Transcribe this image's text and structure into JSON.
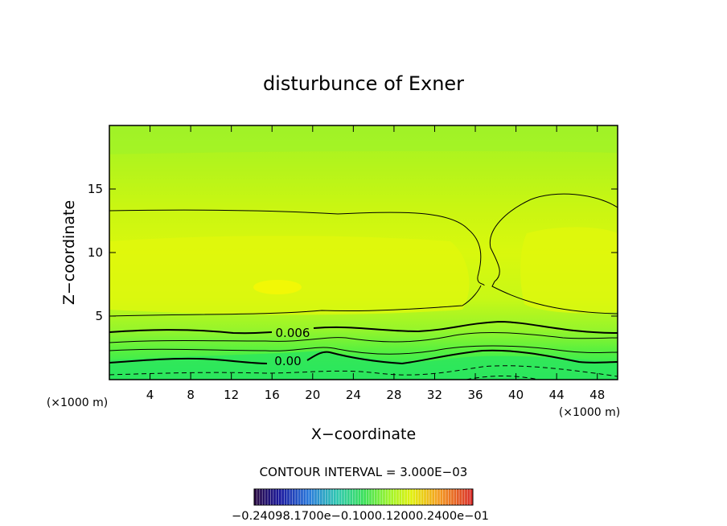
{
  "chart_data": {
    "type": "contour",
    "title": "disturbunce of Exner",
    "xlabel": "X−coordinate",
    "ylabel": "Z−coordinate",
    "x_unit_label": "(×1000 m)",
    "z_unit_label": "(×1000 m)",
    "xlim": [
      0,
      50
    ],
    "ylim": [
      0,
      20
    ],
    "x_ticks": [
      4,
      8,
      12,
      16,
      20,
      24,
      28,
      32,
      36,
      40,
      44,
      48
    ],
    "y_ticks": [
      5,
      10,
      15
    ],
    "contour_interval_text": "CONTOUR INTERVAL = 3.000E−03",
    "contour_labels": [
      {
        "text": "0.006",
        "x": 17.5,
        "z": 3.8
      },
      {
        "text": "0.00",
        "x": 17.0,
        "z": 1.6
      }
    ],
    "colorbar_labels_text": "−0.24098.1700e−0.1000.12000.2400e−01",
    "colors": {
      "bright_green": "#22e860",
      "green": "#7dfa2a",
      "yellow_green": "#b9f71a",
      "yellow": "#ecf80c"
    }
  }
}
